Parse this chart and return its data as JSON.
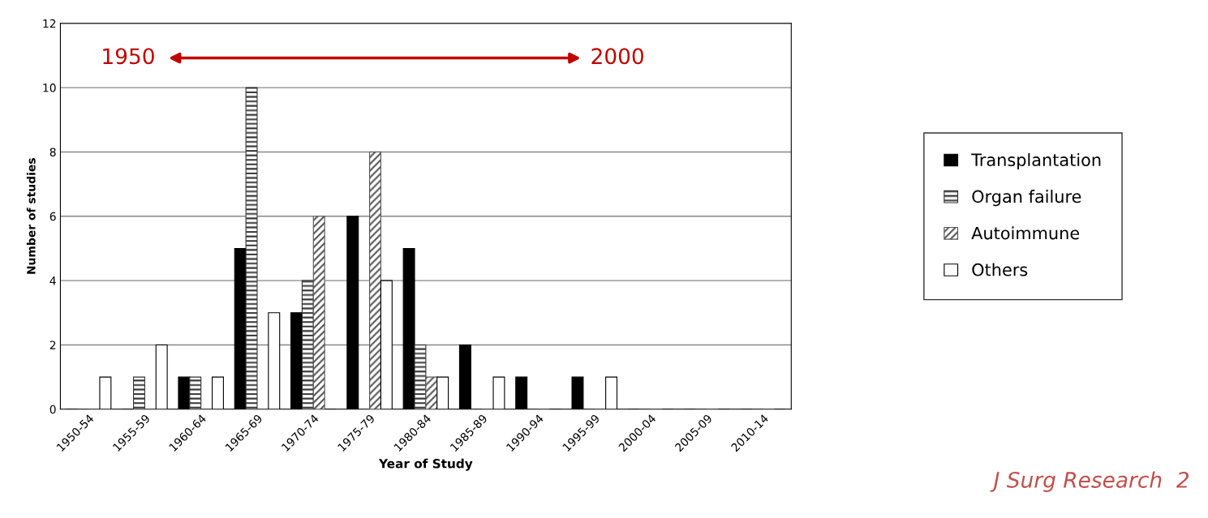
{
  "chart_data": {
    "type": "bar",
    "xlabel": "Year of Study",
    "ylabel": "Number of studies",
    "categories": [
      "1950-54",
      "1955-59",
      "1960-64",
      "1965-69",
      "1970-74",
      "1975-79",
      "1980-84",
      "1985-89",
      "1990-94",
      "1995-99",
      "2000-04",
      "2005-09",
      "2010-14"
    ],
    "series": [
      {
        "name": "Transplantation",
        "color": "#000000",
        "values": [
          0,
          0,
          1,
          5,
          3,
          6,
          5,
          2,
          1,
          1,
          0,
          0,
          0
        ]
      },
      {
        "name": "Organ failure",
        "color": "#333333",
        "values": [
          0,
          1,
          1,
          10,
          4,
          0,
          2,
          0,
          0,
          0,
          0,
          0,
          0
        ]
      },
      {
        "name": "Autoimmune",
        "color": "#555555",
        "values": [
          0,
          0,
          0,
          0,
          6,
          8,
          1,
          0,
          0,
          0,
          0,
          0,
          0
        ]
      },
      {
        "name": "Others",
        "color": "#ffffff",
        "values": [
          1,
          2,
          1,
          3,
          0,
          4,
          1,
          1,
          0,
          1,
          0,
          0,
          0
        ]
      }
    ],
    "ylim": [
      0,
      12
    ],
    "yticks": [
      0,
      2,
      4,
      6,
      8,
      10,
      12
    ],
    "grid": "y",
    "legend": "right",
    "annotations": [
      "1950",
      "2000",
      "J Surg Research  2"
    ]
  }
}
